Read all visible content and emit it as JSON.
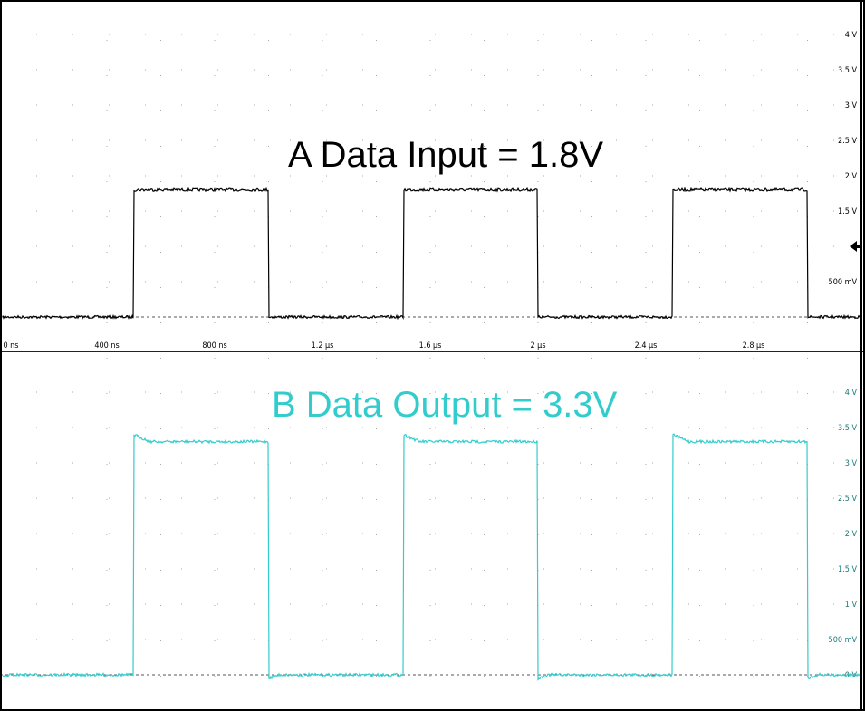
{
  "chart_data": [
    {
      "type": "line",
      "title": "A Data Input = 1.8V",
      "color": "#000000",
      "x_unit": "ns",
      "xlim": [
        0,
        3200
      ],
      "ylim": [
        0,
        4.2
      ],
      "y_tick_labels": [
        {
          "v": 4,
          "label": "4 V"
        },
        {
          "v": 3.5,
          "label": "3.5 V"
        },
        {
          "v": 3,
          "label": "3 V"
        },
        {
          "v": 2.5,
          "label": "2.5 V"
        },
        {
          "v": 2,
          "label": "2 V"
        },
        {
          "v": 1.5,
          "label": "1.5 V"
        },
        {
          "v": 0.5,
          "label": "500 mV"
        }
      ],
      "ground_marker_v": 1,
      "series": [
        {
          "low": 0.0,
          "high": 1.8,
          "period_ns": 1000,
          "first_rise_ns": 500,
          "pulse_ns": 500
        }
      ],
      "grid": true
    },
    {
      "type": "line",
      "title": "B Data Output = 3.3V",
      "color": "#33cccc",
      "x_unit": "ns",
      "xlim": [
        0,
        3200
      ],
      "ylim": [
        0,
        4.2
      ],
      "y_tick_labels": [
        {
          "v": 4,
          "label": "4 V"
        },
        {
          "v": 3.5,
          "label": "3.5 V"
        },
        {
          "v": 3,
          "label": "3 V"
        },
        {
          "v": 2.5,
          "label": "2.5 V"
        },
        {
          "v": 2,
          "label": "2 V"
        },
        {
          "v": 1.5,
          "label": "1.5 V"
        },
        {
          "v": 1,
          "label": "1 V"
        },
        {
          "v": 0.5,
          "label": "500 mV"
        },
        {
          "v": 0,
          "label": "0 V"
        }
      ],
      "series": [
        {
          "low": 0.0,
          "high": 3.3,
          "overshoot": 3.4,
          "period_ns": 1000,
          "first_rise_ns": 500,
          "pulse_ns": 500
        }
      ],
      "grid": true
    }
  ],
  "x_axis": {
    "ticks": [
      {
        "t": 0,
        "label": "0 ns"
      },
      {
        "t": 400,
        "label": "400 ns"
      },
      {
        "t": 800,
        "label": "800 ns"
      },
      {
        "t": 1200,
        "label": "1.2 µs"
      },
      {
        "t": 1600,
        "label": "1.6 µs"
      },
      {
        "t": 2000,
        "label": "2 µs"
      },
      {
        "t": 2400,
        "label": "2.4 µs"
      },
      {
        "t": 2800,
        "label": "2.8 µs"
      }
    ]
  }
}
